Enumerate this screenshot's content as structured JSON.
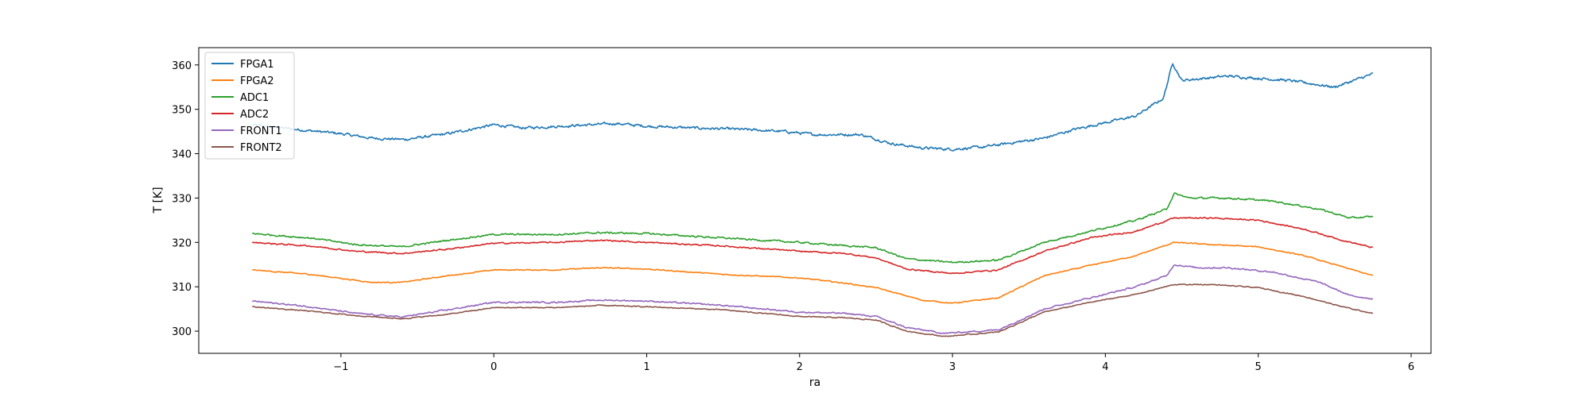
{
  "chart_data": {
    "type": "line",
    "title": "",
    "xlabel": "ra",
    "ylabel": "T [K]",
    "xlim": [
      -1.93,
      6.13
    ],
    "ylim": [
      295.0,
      363.9
    ],
    "xticks": [
      -1,
      0,
      1,
      2,
      3,
      4,
      5,
      6
    ],
    "xtick_labels": [
      "−1",
      "0",
      "1",
      "2",
      "3",
      "4",
      "5",
      "6"
    ],
    "yticks": [
      300,
      310,
      320,
      330,
      340,
      350,
      360
    ],
    "ytick_labels": [
      "300",
      "310",
      "320",
      "330",
      "340",
      "350",
      "360"
    ],
    "grid": false,
    "legend_position": "upper-left",
    "series": [
      {
        "name": "FPGA1",
        "color": "#1f77b4",
        "x": [
          -1.58,
          -1.3,
          -1.0,
          -0.8,
          -0.58,
          -0.3,
          0.0,
          0.2,
          0.5,
          0.8,
          1.0,
          1.3,
          1.6,
          1.9,
          2.1,
          2.4,
          2.6,
          2.8,
          3.0,
          3.2,
          3.4,
          3.6,
          3.8,
          4.0,
          4.2,
          4.38,
          4.44,
          4.5,
          4.8,
          5.2,
          5.5,
          5.75
        ],
        "y": [
          346.5,
          345.5,
          344.5,
          343.5,
          343.2,
          344.5,
          346.5,
          345.8,
          346.3,
          346.8,
          346.2,
          345.8,
          345.5,
          345.0,
          344.3,
          344.3,
          342.3,
          341.3,
          341.0,
          341.5,
          342.5,
          343.5,
          345.5,
          347.0,
          348.5,
          352.5,
          360.5,
          356.5,
          357.5,
          356.5,
          355.0,
          358.0
        ],
        "noise": 0.55
      },
      {
        "name": "FPGA2",
        "color": "#ff7f0e",
        "x": [
          -1.58,
          -1.2,
          -0.8,
          -0.6,
          -0.3,
          0.0,
          0.4,
          0.7,
          1.0,
          1.5,
          2.0,
          2.3,
          2.5,
          2.8,
          3.0,
          3.3,
          3.6,
          3.9,
          4.2,
          4.45,
          4.7,
          5.0,
          5.3,
          5.55,
          5.75
        ],
        "y": [
          313.8,
          312.8,
          311.0,
          311.0,
          312.5,
          313.8,
          313.8,
          314.3,
          314.0,
          312.8,
          312.0,
          310.8,
          309.8,
          307.0,
          306.3,
          307.5,
          312.5,
          314.8,
          317.0,
          320.0,
          319.5,
          319.0,
          317.0,
          314.5,
          312.5
        ],
        "noise": 0.22
      },
      {
        "name": "ADC1",
        "color": "#2ca02c",
        "x": [
          -1.58,
          -1.2,
          -0.9,
          -0.6,
          -0.3,
          0.0,
          0.4,
          0.7,
          1.0,
          1.5,
          2.0,
          2.2,
          2.5,
          2.7,
          3.0,
          3.3,
          3.6,
          3.9,
          4.2,
          4.4,
          4.45,
          4.55,
          4.8,
          5.1,
          5.4,
          5.6,
          5.75
        ],
        "y": [
          322.0,
          321.0,
          319.5,
          319.0,
          320.5,
          321.8,
          321.8,
          322.2,
          322.0,
          321.0,
          320.0,
          319.5,
          318.8,
          316.3,
          315.5,
          316.0,
          320.0,
          322.5,
          325.0,
          327.5,
          331.0,
          330.0,
          330.0,
          329.3,
          327.5,
          325.5,
          325.8
        ],
        "noise": 0.35
      },
      {
        "name": "ADC2",
        "color": "#d62728",
        "x": [
          -1.58,
          -1.2,
          -0.9,
          -0.6,
          -0.3,
          0.0,
          0.4,
          0.7,
          1.0,
          1.5,
          2.0,
          2.3,
          2.5,
          2.7,
          3.0,
          3.3,
          3.6,
          3.9,
          4.2,
          4.45,
          4.7,
          5.0,
          5.3,
          5.55,
          5.75
        ],
        "y": [
          320.0,
          319.2,
          318.0,
          317.5,
          318.5,
          319.8,
          320.0,
          320.5,
          320.0,
          319.2,
          318.0,
          317.5,
          316.5,
          314.0,
          313.0,
          313.8,
          318.0,
          321.0,
          322.5,
          325.5,
          325.5,
          325.0,
          323.0,
          320.5,
          318.8
        ],
        "noise": 0.28
      },
      {
        "name": "FRONT1",
        "color": "#9467bd",
        "x": [
          -1.58,
          -1.2,
          -0.9,
          -0.6,
          -0.3,
          0.0,
          0.4,
          0.7,
          1.0,
          1.5,
          2.0,
          2.3,
          2.5,
          2.7,
          2.95,
          3.3,
          3.6,
          3.9,
          4.2,
          4.4,
          4.45,
          4.6,
          4.8,
          5.1,
          5.4,
          5.6,
          5.75
        ],
        "y": [
          306.8,
          305.5,
          304.0,
          303.2,
          304.8,
          306.5,
          306.5,
          307.0,
          306.8,
          305.8,
          304.3,
          304.0,
          303.3,
          300.8,
          299.5,
          300.3,
          305.0,
          307.5,
          310.0,
          312.5,
          315.0,
          314.3,
          314.3,
          313.3,
          311.0,
          308.0,
          307.3
        ],
        "noise": 0.3
      },
      {
        "name": "FRONT2",
        "color": "#8c564b",
        "x": [
          -1.58,
          -1.2,
          -0.9,
          -0.6,
          -0.3,
          0.0,
          0.4,
          0.7,
          1.0,
          1.5,
          2.0,
          2.3,
          2.5,
          2.7,
          2.95,
          3.3,
          3.6,
          3.9,
          4.2,
          4.45,
          4.7,
          5.0,
          5.3,
          5.55,
          5.75
        ],
        "y": [
          305.5,
          304.5,
          303.5,
          302.8,
          303.8,
          305.3,
          305.3,
          305.8,
          305.5,
          304.8,
          303.3,
          303.0,
          302.5,
          300.0,
          298.8,
          299.8,
          304.3,
          306.5,
          308.3,
          310.5,
          310.5,
          309.8,
          307.8,
          305.5,
          304.0
        ],
        "noise": 0.2
      }
    ]
  }
}
